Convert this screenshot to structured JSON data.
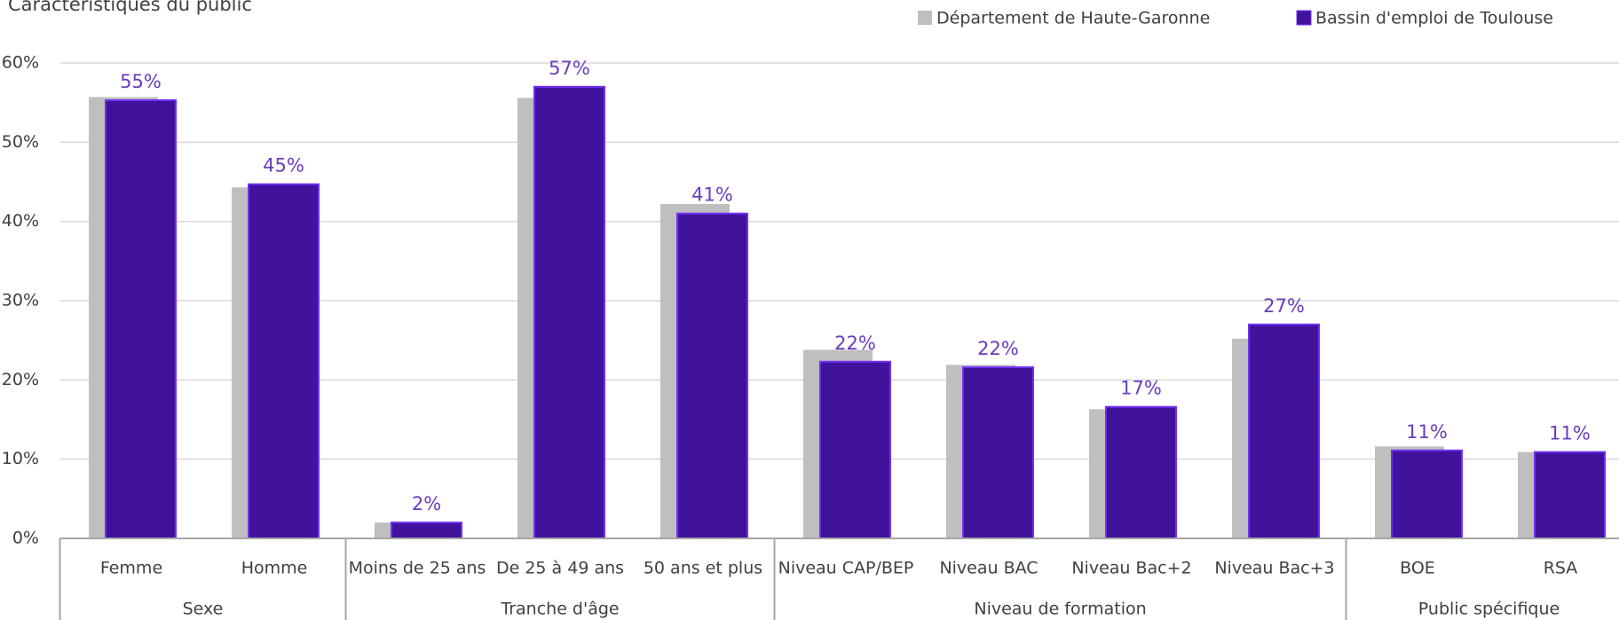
{
  "chart_data": {
    "type": "bar",
    "title": "Caractéristiques du public",
    "groups": [
      {
        "label": "Sexe",
        "categories": [
          "Femme",
          "Homme"
        ]
      },
      {
        "label": "Tranche d'âge",
        "categories": [
          "Moins de 25 ans",
          "De 25 à 49 ans",
          "50 ans et plus"
        ]
      },
      {
        "label": "Niveau de formation",
        "categories": [
          "Niveau CAP/BEP",
          "Niveau BAC",
          "Niveau Bac+2",
          "Niveau Bac+3"
        ]
      },
      {
        "label": "Public spécifique",
        "categories": [
          "BOE",
          "RSA"
        ]
      }
    ],
    "series": [
      {
        "name": "Département de Haute-Garonne",
        "color": "#bfbfbf",
        "values": [
          55.7,
          44.3,
          2.0,
          55.6,
          42.2,
          23.8,
          21.9,
          16.3,
          25.2,
          11.6,
          10.9
        ]
      },
      {
        "name": "Bassin d'emploi de Toulouse",
        "color": "#41129c",
        "values": [
          55.3,
          44.7,
          2.0,
          57.0,
          41.0,
          22.3,
          21.6,
          16.6,
          27.0,
          11.1,
          10.9
        ],
        "value_labels": [
          "55%",
          "45%",
          "2%",
          "57%",
          "41%",
          "22%",
          "22%",
          "17%",
          "27%",
          "11%",
          "11%"
        ]
      }
    ],
    "ylim": [
      0,
      60
    ],
    "yticks": [
      {
        "value": 0,
        "label": "0%"
      },
      {
        "value": 10,
        "label": "10%"
      },
      {
        "value": 20,
        "label": "20%"
      },
      {
        "value": 30,
        "label": "30%"
      },
      {
        "value": 40,
        "label": "40%"
      },
      {
        "value": 50,
        "label": "50%"
      },
      {
        "value": 60,
        "label": "60%"
      }
    ],
    "grid": true,
    "legend": "top-right"
  }
}
